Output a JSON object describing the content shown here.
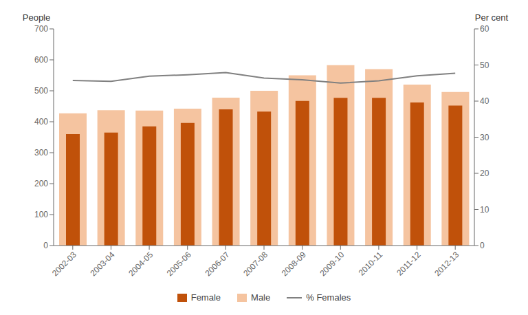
{
  "chart_data": {
    "type": "bar",
    "categories": [
      "2002-03",
      "2003-04",
      "2004-05",
      "2005-06",
      "2006-07",
      "2007-08",
      "2008-09",
      "2009-10",
      "2010-11",
      "2011-12",
      "2012-13"
    ],
    "series": [
      {
        "name": "Female",
        "type": "bar",
        "color": "#C0510A",
        "values": [
          360,
          365,
          385,
          396,
          440,
          433,
          467,
          477,
          477,
          462,
          452
        ]
      },
      {
        "name": "Male",
        "type": "bar",
        "color": "#F5C4A0",
        "values": [
          427,
          437,
          436,
          442,
          478,
          500,
          550,
          583,
          570,
          520,
          496
        ]
      },
      {
        "name": "% Females",
        "type": "line",
        "color": "#808080",
        "axis": "y2",
        "values": [
          45.7,
          45.5,
          46.9,
          47.3,
          47.9,
          46.4,
          45.9,
          45.0,
          45.6,
          47.0,
          47.7
        ]
      }
    ],
    "ylabel": "People",
    "y2label": "Per cent",
    "ylim": [
      0,
      700
    ],
    "yticks": [
      0,
      100,
      200,
      300,
      400,
      500,
      600,
      700
    ],
    "y2lim": [
      0,
      60
    ],
    "y2ticks": [
      0,
      10,
      20,
      30,
      40,
      50,
      60
    ],
    "grid": false
  }
}
